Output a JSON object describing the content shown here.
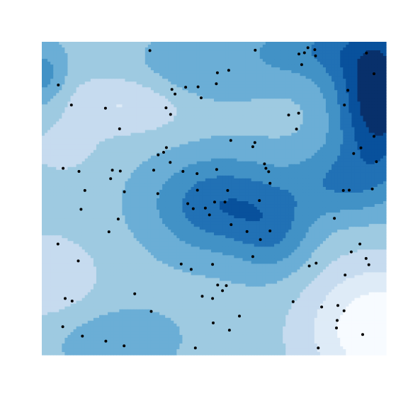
{
  "chart_data": {
    "type": "heatmap",
    "title": "",
    "xlabel": "",
    "ylabel": "",
    "xlim": [
      0,
      1
    ],
    "ylim": [
      0,
      1
    ],
    "grid": false,
    "legend": "none",
    "levels": 9,
    "palette": [
      "#f7fbff",
      "#deebf7",
      "#c6dbef",
      "#9ecae1",
      "#6baed6",
      "#4292c6",
      "#2171b5",
      "#08519c",
      "#08306b"
    ],
    "field_components": {
      "base": 0.35,
      "peaks": [
        {
          "x": 0.52,
          "y": 0.48,
          "amp": 0.4,
          "sx": 0.14,
          "sy": 0.11
        },
        {
          "x": 0.98,
          "y": 0.82,
          "amp": 0.65,
          "sx": 0.09,
          "sy": 0.18
        },
        {
          "x": 0.78,
          "y": 0.98,
          "amp": 0.25,
          "sx": 0.13,
          "sy": 0.08
        },
        {
          "x": 0.68,
          "y": 0.38,
          "amp": 0.2,
          "sx": 0.08,
          "sy": 0.1
        },
        {
          "x": 0.85,
          "y": 0.55,
          "amp": 0.22,
          "sx": 0.1,
          "sy": 0.08
        },
        {
          "x": 0.0,
          "y": 0.89,
          "amp": 0.25,
          "sx": 0.05,
          "sy": 0.07
        },
        {
          "x": 0.45,
          "y": 0.9,
          "amp": 0.18,
          "sx": 0.12,
          "sy": 0.08
        },
        {
          "x": 0.22,
          "y": 0.05,
          "amp": 0.15,
          "sx": 0.12,
          "sy": 0.07
        }
      ],
      "troughs": [
        {
          "x": 0.98,
          "y": 0.08,
          "amp": 0.45,
          "sx": 0.15,
          "sy": 0.15
        },
        {
          "x": 0.25,
          "y": 0.8,
          "amp": 0.22,
          "sx": 0.15,
          "sy": 0.07
        },
        {
          "x": 0.0,
          "y": 0.25,
          "amp": 0.2,
          "sx": 0.12,
          "sy": 0.1
        },
        {
          "x": 0.06,
          "y": 0.65,
          "amp": 0.12,
          "sx": 0.08,
          "sy": 0.06
        }
      ]
    },
    "points": [
      [
        0.314,
        0.972
      ],
      [
        0.048,
        0.862
      ],
      [
        0.086,
        0.798
      ],
      [
        0.378,
        0.848
      ],
      [
        0.418,
        0.855
      ],
      [
        0.543,
        0.909
      ],
      [
        0.387,
        0.833
      ],
      [
        0.361,
        0.789
      ],
      [
        0.374,
        0.768
      ],
      [
        0.454,
        0.856
      ],
      [
        0.463,
        0.821
      ],
      [
        0.51,
        0.901
      ],
      [
        0.507,
        0.866
      ],
      [
        0.185,
        0.788
      ],
      [
        0.226,
        0.722
      ],
      [
        0.62,
        0.973
      ],
      [
        0.773,
        0.981
      ],
      [
        0.793,
        0.975
      ],
      [
        0.763,
        0.965
      ],
      [
        0.747,
        0.961
      ],
      [
        0.795,
        0.955
      ],
      [
        0.755,
        0.927
      ],
      [
        0.943,
        0.964
      ],
      [
        0.965,
        0.898
      ],
      [
        0.889,
        0.845
      ],
      [
        0.879,
        0.798
      ],
      [
        0.717,
        0.766
      ],
      [
        0.746,
        0.772
      ],
      [
        0.74,
        0.721
      ],
      [
        0.549,
        0.685
      ],
      [
        0.619,
        0.678
      ],
      [
        0.613,
        0.665
      ],
      [
        0.362,
        0.662
      ],
      [
        0.354,
        0.647
      ],
      [
        0.325,
        0.59
      ],
      [
        0.647,
        0.61
      ],
      [
        0.651,
        0.596
      ],
      [
        0.965,
        0.698
      ],
      [
        0.927,
        0.661
      ],
      [
        0.906,
        0.643
      ],
      [
        0.972,
        0.617
      ],
      [
        0.96,
        0.53
      ],
      [
        0.893,
        0.526
      ],
      [
        0.876,
        0.525
      ],
      [
        0.85,
        0.436
      ],
      [
        0.924,
        0.354
      ],
      [
        0.899,
        0.329
      ],
      [
        0.95,
        0.288
      ],
      [
        0.881,
        0.255
      ],
      [
        0.777,
        0.284
      ],
      [
        0.813,
        0.153
      ],
      [
        0.86,
        0.158
      ],
      [
        0.858,
        0.11
      ],
      [
        0.932,
        0.065
      ],
      [
        0.856,
        0.086
      ],
      [
        0.803,
        0.022
      ],
      [
        0.062,
        0.596
      ],
      [
        0.108,
        0.586
      ],
      [
        0.205,
        0.59
      ],
      [
        0.228,
        0.587
      ],
      [
        0.2,
        0.563
      ],
      [
        0.24,
        0.521
      ],
      [
        0.125,
        0.525
      ],
      [
        0.114,
        0.465
      ],
      [
        0.222,
        0.434
      ],
      [
        0.195,
        0.393
      ],
      [
        0.047,
        0.354
      ],
      [
        0.106,
        0.3
      ],
      [
        0.068,
        0.18
      ],
      [
        0.088,
        0.172
      ],
      [
        0.27,
        0.195
      ],
      [
        0.318,
        0.139
      ],
      [
        0.061,
        0.09
      ],
      [
        0.118,
        0.06
      ],
      [
        0.186,
        0.044
      ],
      [
        0.239,
        0.029
      ],
      [
        0.338,
        0.639
      ],
      [
        0.373,
        0.615
      ],
      [
        0.41,
        0.586
      ],
      [
        0.451,
        0.579
      ],
      [
        0.508,
        0.592
      ],
      [
        0.54,
        0.525
      ],
      [
        0.452,
        0.526
      ],
      [
        0.337,
        0.515
      ],
      [
        0.424,
        0.483
      ],
      [
        0.44,
        0.467
      ],
      [
        0.475,
        0.469
      ],
      [
        0.487,
        0.447
      ],
      [
        0.532,
        0.488
      ],
      [
        0.502,
        0.488
      ],
      [
        0.55,
        0.416
      ],
      [
        0.596,
        0.394
      ],
      [
        0.635,
        0.368
      ],
      [
        0.632,
        0.493
      ],
      [
        0.663,
        0.548
      ],
      [
        0.659,
        0.585
      ],
      [
        0.663,
        0.396
      ],
      [
        0.613,
        0.314
      ],
      [
        0.405,
        0.29
      ],
      [
        0.434,
        0.273
      ],
      [
        0.496,
        0.289
      ],
      [
        0.536,
        0.221
      ],
      [
        0.511,
        0.223
      ],
      [
        0.525,
        0.205
      ],
      [
        0.496,
        0.18
      ],
      [
        0.466,
        0.187
      ],
      [
        0.545,
        0.079
      ],
      [
        0.574,
        0.124
      ],
      [
        0.498,
        0.102
      ],
      [
        0.446,
        0.022
      ],
      [
        0.797,
        0.293
      ],
      [
        0.878,
        0.141
      ],
      [
        0.942,
        0.308
      ],
      [
        0.73,
        0.17
      ]
    ]
  }
}
